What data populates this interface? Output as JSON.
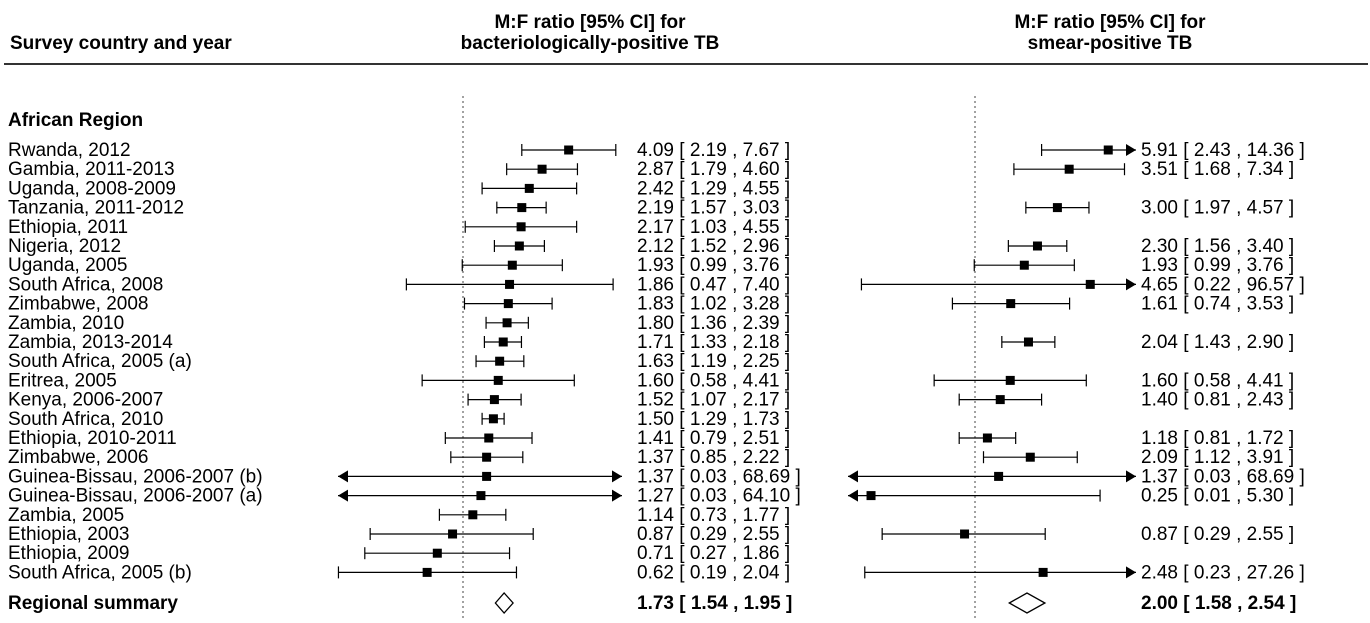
{
  "header": {
    "col1": "Survey country and year",
    "col2_line1": "M:F ratio [95% CI] for",
    "col2_line2": "bacteriologically-positive TB",
    "col3_line1": "M:F ratio [95% CI] for",
    "col3_line2": "smear-positive TB"
  },
  "region": "African Region",
  "summary_label": "Regional summary",
  "chart_data": {
    "type": "forest",
    "x_scale": "log",
    "reference_line": 1,
    "rows": [
      {
        "label": "Rwanda, 2012",
        "bact": [
          4.09,
          2.19,
          7.67
        ],
        "bact_text": "4.09 [ 2.19 ,  7.67 ]",
        "smear": [
          5.91,
          2.43,
          14.36
        ],
        "smear_text": "5.91 [ 2.43 , 14.36 ]"
      },
      {
        "label": "Gambia, 2011-2013",
        "bact": [
          2.87,
          1.79,
          4.6
        ],
        "bact_text": "2.87 [ 1.79 ,  4.60 ]",
        "smear": [
          3.51,
          1.68,
          7.34
        ],
        "smear_text": "3.51 [ 1.68 ,  7.34 ]"
      },
      {
        "label": "Uganda, 2008-2009",
        "bact": [
          2.42,
          1.29,
          4.55
        ],
        "bact_text": "2.42 [ 1.29 ,  4.55 ]",
        "smear": null,
        "smear_text": ""
      },
      {
        "label": "Tanzania, 2011-2012",
        "bact": [
          2.19,
          1.57,
          3.03
        ],
        "bact_text": "2.19 [ 1.57 ,  3.03 ]",
        "smear": [
          3.0,
          1.97,
          4.57
        ],
        "smear_text": "3.00 [ 1.97 ,  4.57 ]"
      },
      {
        "label": "Ethiopia, 2011",
        "bact": [
          2.17,
          1.03,
          4.55
        ],
        "bact_text": "2.17 [ 1.03 ,  4.55 ]",
        "smear": null,
        "smear_text": ""
      },
      {
        "label": "Nigeria, 2012",
        "bact": [
          2.12,
          1.52,
          2.96
        ],
        "bact_text": "2.12 [ 1.52 ,  2.96 ]",
        "smear": [
          2.3,
          1.56,
          3.4
        ],
        "smear_text": "2.30 [ 1.56 ,  3.40 ]"
      },
      {
        "label": "Uganda, 2005",
        "bact": [
          1.93,
          0.99,
          3.76
        ],
        "bact_text": "1.93 [ 0.99 ,  3.76 ]",
        "smear": [
          1.93,
          0.99,
          3.76
        ],
        "smear_text": "1.93 [ 0.99 ,  3.76 ]"
      },
      {
        "label": "South Africa, 2008",
        "bact": [
          1.86,
          0.47,
          7.4
        ],
        "bact_text": "1.86 [ 0.47 ,  7.40 ]",
        "smear": [
          4.65,
          0.22,
          96.57
        ],
        "smear_text": "4.65 [ 0.22 , 96.57 ]"
      },
      {
        "label": "Zimbabwe, 2008",
        "bact": [
          1.83,
          1.02,
          3.28
        ],
        "bact_text": "1.83 [ 1.02 ,  3.28 ]",
        "smear": [
          1.61,
          0.74,
          3.53
        ],
        "smear_text": "1.61 [ 0.74 ,  3.53 ]"
      },
      {
        "label": "Zambia, 2010",
        "bact": [
          1.8,
          1.36,
          2.39
        ],
        "bact_text": "1.80 [ 1.36 ,  2.39 ]",
        "smear": null,
        "smear_text": ""
      },
      {
        "label": "Zambia, 2013-2014",
        "bact": [
          1.71,
          1.33,
          2.18
        ],
        "bact_text": "1.71 [ 1.33 ,  2.18 ]",
        "smear": [
          2.04,
          1.43,
          2.9
        ],
        "smear_text": "2.04 [ 1.43 ,  2.90 ]"
      },
      {
        "label": "South Africa, 2005 (a)",
        "bact": [
          1.63,
          1.19,
          2.25
        ],
        "bact_text": "1.63 [ 1.19 ,  2.25 ]",
        "smear": null,
        "smear_text": ""
      },
      {
        "label": "Eritrea, 2005",
        "bact": [
          1.6,
          0.58,
          4.41
        ],
        "bact_text": "1.60 [ 0.58 ,  4.41 ]",
        "smear": [
          1.6,
          0.58,
          4.41
        ],
        "smear_text": "1.60 [ 0.58 ,  4.41 ]"
      },
      {
        "label": "Kenya, 2006-2007",
        "bact": [
          1.52,
          1.07,
          2.17
        ],
        "bact_text": "1.52 [ 1.07 ,  2.17 ]",
        "smear": [
          1.4,
          0.81,
          2.43
        ],
        "smear_text": "1.40 [ 0.81 ,  2.43 ]"
      },
      {
        "label": "South Africa, 2010",
        "bact": [
          1.5,
          1.29,
          1.73
        ],
        "bact_text": "1.50 [ 1.29 ,  1.73 ]",
        "smear": null,
        "smear_text": ""
      },
      {
        "label": "Ethiopia, 2010-2011",
        "bact": [
          1.41,
          0.79,
          2.51
        ],
        "bact_text": "1.41 [ 0.79 ,  2.51 ]",
        "smear": [
          1.18,
          0.81,
          1.72
        ],
        "smear_text": "1.18 [ 0.81 ,  1.72 ]"
      },
      {
        "label": "Zimbabwe, 2006",
        "bact": [
          1.37,
          0.85,
          2.22
        ],
        "bact_text": "1.37 [ 0.85 ,  2.22 ]",
        "smear": [
          2.09,
          1.12,
          3.91
        ],
        "smear_text": "2.09 [ 1.12 ,  3.91 ]"
      },
      {
        "label": "Guinea-Bissau, 2006-2007 (b)",
        "bact": [
          1.37,
          0.03,
          68.69
        ],
        "bact_text": "1.37 [ 0.03 , 68.69 ]",
        "smear": [
          1.37,
          0.03,
          68.69
        ],
        "smear_text": "1.37 [ 0.03 , 68.69 ]"
      },
      {
        "label": "Guinea-Bissau, 2006-2007 (a)",
        "bact": [
          1.27,
          0.03,
          64.1
        ],
        "bact_text": "1.27 [ 0.03 , 64.10 ]",
        "smear": [
          0.25,
          0.01,
          5.3
        ],
        "smear_text": "0.25 [ 0.01 ,  5.30 ]"
      },
      {
        "label": "Zambia, 2005",
        "bact": [
          1.14,
          0.73,
          1.77
        ],
        "bact_text": "1.14 [ 0.73 ,  1.77 ]",
        "smear": null,
        "smear_text": ""
      },
      {
        "label": "Ethiopia, 2003",
        "bact": [
          0.87,
          0.29,
          2.55
        ],
        "bact_text": "0.87 [ 0.29 ,  2.55 ]",
        "smear": [
          0.87,
          0.29,
          2.55
        ],
        "smear_text": "0.87 [ 0.29 ,  2.55 ]"
      },
      {
        "label": "Ethiopia, 2009",
        "bact": [
          0.71,
          0.27,
          1.86
        ],
        "bact_text": "0.71 [ 0.27 ,  1.86 ]",
        "smear": null,
        "smear_text": ""
      },
      {
        "label": "South Africa, 2005 (b)",
        "bact": [
          0.62,
          0.19,
          2.04
        ],
        "bact_text": "0.62 [ 0.19 ,  2.04 ]",
        "smear": [
          2.48,
          0.23,
          27.26
        ],
        "smear_text": "2.48 [ 0.23 , 27.26 ]"
      }
    ],
    "summary": {
      "bact": [
        1.73,
        1.54,
        1.95
      ],
      "bact_text": "1.73 [ 1.54 , 1.95 ]",
      "smear": [
        2.0,
        1.58,
        2.54
      ],
      "smear_text": "2.00 [ 1.58 , 2.54 ]"
    }
  }
}
